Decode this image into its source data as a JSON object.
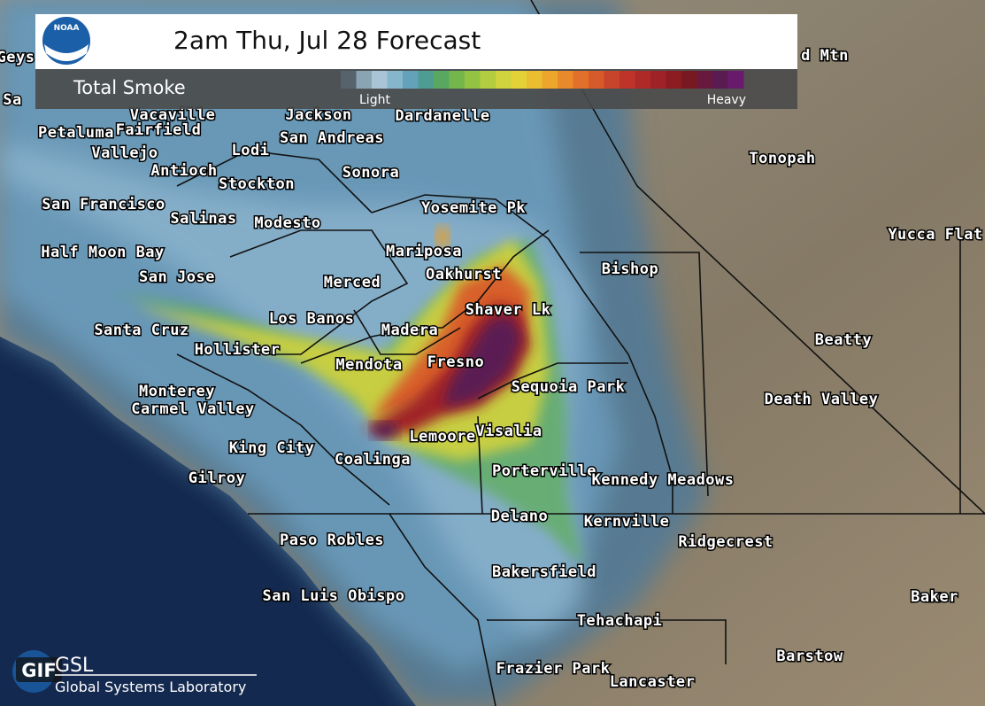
{
  "header": {
    "title": "2am Thu, Jul 28 Forecast",
    "logo": "NOAA"
  },
  "legend": {
    "label": "Total Smoke",
    "low": "Light",
    "high": "Heavy",
    "colors": [
      "#56626c",
      "#8aa4b4",
      "#a8c4d6",
      "#86b6cc",
      "#64a2bc",
      "#4e9c92",
      "#58a862",
      "#74b64a",
      "#94c242",
      "#b4cc40",
      "#d0d23e",
      "#e2d238",
      "#eabe30",
      "#eca62c",
      "#e88a2a",
      "#e0702a",
      "#d65a2a",
      "#c8442a",
      "#be3428",
      "#ae2a28",
      "#9e2226",
      "#8c1c22",
      "#781820",
      "#681a3e",
      "#5a1a52",
      "#6a1a6c"
    ]
  },
  "cities": [
    "Geys",
    "Sa",
    "d Mtn",
    "Vacaville",
    "Petaluma",
    "Fairfield",
    "Vallejo",
    "Antioch",
    "Jackson",
    "Dardanelle",
    "San Andreas",
    "Lodi",
    "Sonora",
    "Stockton",
    "San Francisco",
    "Salinas",
    "Modesto",
    "Yosemite Pk",
    "Tonopah",
    "Yucca Flat",
    "Half Moon Bay",
    "Mariposa",
    "San Jose",
    "Oakhurst",
    "Bishop",
    "Merced",
    "Shaver Lk",
    "Los Banos",
    "Madera",
    "Santa Cruz",
    "Hollister",
    "Beatty",
    "Mendota",
    "Fresno",
    "Sequoia Park",
    "Monterey",
    "Death Valley",
    "Carmel Valley",
    "Visalia",
    "Lemoore",
    "King City",
    "Coalinga",
    "Porterville",
    "Kennedy Meadows",
    "Gilroy",
    "Delano",
    "Kernville",
    "Ridgecrest",
    "Paso Robles",
    "Bakersfield",
    "San Luis Obispo",
    "Baker",
    "Tehachapi",
    "Barstow",
    "Frazier Park",
    "Lancaster"
  ],
  "footer": {
    "org_abbr": "GSL",
    "org_name": "Global Systems Laboratory",
    "badge": "GIF"
  }
}
